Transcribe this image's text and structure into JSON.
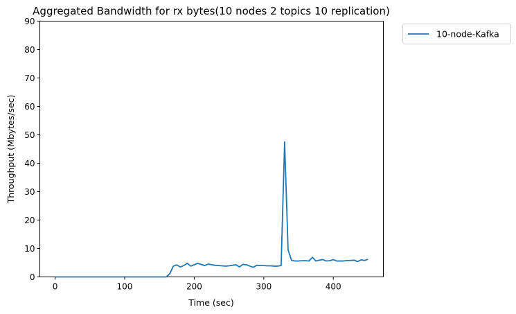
{
  "chart_data": {
    "type": "line",
    "title": "Aggregated Bandwidth for rx bytes(10 nodes 2 topics 10 replication)",
    "xlabel": "Time (sec)",
    "ylabel": "Throughput (Mbytes/sec)",
    "xlim": [
      -22,
      472
    ],
    "ylim": [
      0,
      90
    ],
    "xticks": [
      0,
      100,
      200,
      300,
      400
    ],
    "yticks": [
      0,
      10,
      20,
      30,
      40,
      50,
      60,
      70,
      80,
      90
    ],
    "grid": false,
    "legend_position": "outside-top-right",
    "series": [
      {
        "name": "10-node-Kafka",
        "color": "#1f77b4",
        "x": [
          0,
          10,
          20,
          30,
          40,
          50,
          60,
          70,
          80,
          90,
          100,
          110,
          120,
          130,
          140,
          150,
          160,
          165,
          170,
          175,
          180,
          185,
          190,
          195,
          200,
          205,
          210,
          215,
          220,
          225,
          230,
          235,
          240,
          245,
          250,
          255,
          260,
          265,
          270,
          275,
          280,
          285,
          290,
          295,
          300,
          305,
          310,
          315,
          320,
          325,
          330,
          335,
          340,
          345,
          350,
          355,
          360,
          365,
          370,
          375,
          380,
          385,
          390,
          395,
          400,
          405,
          410,
          415,
          420,
          425,
          430,
          435,
          440,
          445,
          450
        ],
        "values": [
          0,
          0,
          0,
          0,
          0,
          0,
          0,
          0,
          0,
          0,
          0,
          0,
          0,
          0,
          0,
          0,
          0,
          1.2,
          3.8,
          4.2,
          3.5,
          4.0,
          4.8,
          3.8,
          4.3,
          4.8,
          4.4,
          4.0,
          4.5,
          4.3,
          4.1,
          4.0,
          3.9,
          3.8,
          3.9,
          4.1,
          4.3,
          3.5,
          4.4,
          4.3,
          3.8,
          3.4,
          4.1,
          4.0,
          4.0,
          3.9,
          3.9,
          3.8,
          3.8,
          4.0,
          47.5,
          9.5,
          5.8,
          5.6,
          5.6,
          5.7,
          5.7,
          5.6,
          6.9,
          5.6,
          5.9,
          6.1,
          5.6,
          5.7,
          6.1,
          5.6,
          5.6,
          5.6,
          5.8,
          5.8,
          5.9,
          5.4,
          6.0,
          5.8,
          6.2
        ]
      }
    ]
  }
}
